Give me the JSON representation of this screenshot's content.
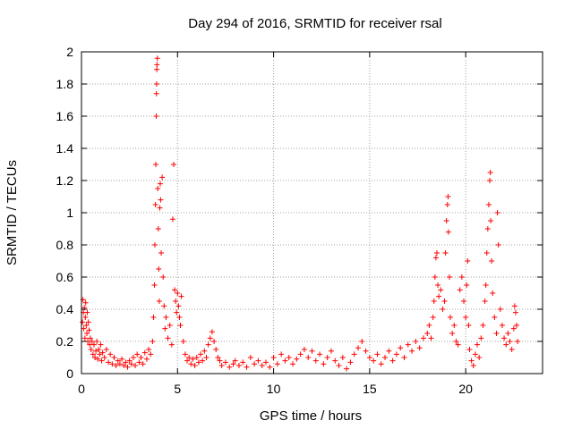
{
  "chart_data": {
    "type": "scatter",
    "title": "Day 294 of 2016, SRMTID for receiver rsal",
    "xlabel": "GPS time / hours",
    "ylabel": "SRMTID / TECUs",
    "xlim": [
      0,
      24
    ],
    "ylim": [
      0,
      2
    ],
    "xticks": [
      0,
      5,
      10,
      15,
      20
    ],
    "yticks": [
      0,
      0.2,
      0.4,
      0.6,
      0.8,
      1,
      1.2,
      1.4,
      1.6,
      1.8,
      2
    ],
    "grid": true,
    "marker": "+",
    "color": "#ff0000",
    "series": [
      {
        "points": [
          [
            0.05,
            0.32
          ],
          [
            0.08,
            0.46
          ],
          [
            0.1,
            0.38
          ],
          [
            0.12,
            0.28
          ],
          [
            0.15,
            0.41
          ],
          [
            0.18,
            0.22
          ],
          [
            0.2,
            0.35
          ],
          [
            0.22,
            0.44
          ],
          [
            0.25,
            0.3
          ],
          [
            0.28,
            0.25
          ],
          [
            0.3,
            0.38
          ],
          [
            0.33,
            0.2
          ],
          [
            0.36,
            0.32
          ],
          [
            0.4,
            0.27
          ],
          [
            0.43,
            0.18
          ],
          [
            0.46,
            0.22
          ],
          [
            0.5,
            0.15
          ],
          [
            0.55,
            0.2
          ],
          [
            0.6,
            0.12
          ],
          [
            0.65,
            0.18
          ],
          [
            0.7,
            0.1
          ],
          [
            0.75,
            0.14
          ],
          [
            0.8,
            0.2
          ],
          [
            0.85,
            0.09
          ],
          [
            0.9,
            0.15
          ],
          [
            0.95,
            0.12
          ],
          [
            1.0,
            0.18
          ],
          [
            1.05,
            0.08
          ],
          [
            1.1,
            0.13
          ],
          [
            1.2,
            0.1
          ],
          [
            1.3,
            0.15
          ],
          [
            1.4,
            0.07
          ],
          [
            1.5,
            0.12
          ],
          [
            1.6,
            0.06
          ],
          [
            1.7,
            0.1
          ],
          [
            1.8,
            0.05
          ],
          [
            1.9,
            0.08
          ],
          [
            2.0,
            0.06
          ],
          [
            2.1,
            0.09
          ],
          [
            2.2,
            0.05
          ],
          [
            2.3,
            0.07
          ],
          [
            2.4,
            0.04
          ],
          [
            2.5,
            0.08
          ],
          [
            2.6,
            0.06
          ],
          [
            2.7,
            0.1
          ],
          [
            2.8,
            0.05
          ],
          [
            2.9,
            0.12
          ],
          [
            3.0,
            0.07
          ],
          [
            3.1,
            0.1
          ],
          [
            3.2,
            0.06
          ],
          [
            3.3,
            0.13
          ],
          [
            3.4,
            0.09
          ],
          [
            3.5,
            0.15
          ],
          [
            3.6,
            0.12
          ],
          [
            3.7,
            0.2
          ],
          [
            3.75,
            0.35
          ],
          [
            3.8,
            0.55
          ],
          [
            3.82,
            0.8
          ],
          [
            3.85,
            1.05
          ],
          [
            3.87,
            1.3
          ],
          [
            3.89,
            1.6
          ],
          [
            3.9,
            1.74
          ],
          [
            3.91,
            1.8
          ],
          [
            3.92,
            1.89
          ],
          [
            3.93,
            1.92
          ],
          [
            3.95,
            1.96
          ],
          [
            3.97,
            1.15
          ],
          [
            4.0,
            0.9
          ],
          [
            4.02,
            0.65
          ],
          [
            4.05,
            0.45
          ],
          [
            4.08,
            1.03
          ],
          [
            4.1,
            1.18
          ],
          [
            4.12,
            1.08
          ],
          [
            4.15,
            0.75
          ],
          [
            4.2,
            1.22
          ],
          [
            4.25,
            0.6
          ],
          [
            4.3,
            0.42
          ],
          [
            4.35,
            0.28
          ],
          [
            4.4,
            0.35
          ],
          [
            4.5,
            0.22
          ],
          [
            4.6,
            0.3
          ],
          [
            4.7,
            0.18
          ],
          [
            4.75,
            0.96
          ],
          [
            4.8,
            1.3
          ],
          [
            4.85,
            0.52
          ],
          [
            4.9,
            0.45
          ],
          [
            4.95,
            0.38
          ],
          [
            5.0,
            0.5
          ],
          [
            5.05,
            0.42
          ],
          [
            5.1,
            0.35
          ],
          [
            5.15,
            0.3
          ],
          [
            5.2,
            0.48
          ],
          [
            5.3,
            0.2
          ],
          [
            5.4,
            0.12
          ],
          [
            5.5,
            0.08
          ],
          [
            5.6,
            0.1
          ],
          [
            5.7,
            0.06
          ],
          [
            5.8,
            0.09
          ],
          [
            5.9,
            0.05
          ],
          [
            6.0,
            0.1
          ],
          [
            6.1,
            0.07
          ],
          [
            6.2,
            0.12
          ],
          [
            6.3,
            0.08
          ],
          [
            6.4,
            0.14
          ],
          [
            6.5,
            0.1
          ],
          [
            6.6,
            0.18
          ],
          [
            6.7,
            0.22
          ],
          [
            6.8,
            0.26
          ],
          [
            6.9,
            0.2
          ],
          [
            7.0,
            0.15
          ],
          [
            7.1,
            0.1
          ],
          [
            7.2,
            0.08
          ],
          [
            7.3,
            0.05
          ],
          [
            7.5,
            0.07
          ],
          [
            7.7,
            0.04
          ],
          [
            7.9,
            0.06
          ],
          [
            8.0,
            0.08
          ],
          [
            8.2,
            0.05
          ],
          [
            8.4,
            0.07
          ],
          [
            8.6,
            0.04
          ],
          [
            8.8,
            0.1
          ],
          [
            9.0,
            0.06
          ],
          [
            9.2,
            0.08
          ],
          [
            9.4,
            0.05
          ],
          [
            9.6,
            0.07
          ],
          [
            9.8,
            0.04
          ],
          [
            10.0,
            0.1
          ],
          [
            10.2,
            0.06
          ],
          [
            10.4,
            0.12
          ],
          [
            10.6,
            0.08
          ],
          [
            10.8,
            0.1
          ],
          [
            11.0,
            0.06
          ],
          [
            11.2,
            0.09
          ],
          [
            11.4,
            0.12
          ],
          [
            11.6,
            0.15
          ],
          [
            11.8,
            0.1
          ],
          [
            12.0,
            0.14
          ],
          [
            12.2,
            0.08
          ],
          [
            12.4,
            0.12
          ],
          [
            12.6,
            0.06
          ],
          [
            12.8,
            0.1
          ],
          [
            13.0,
            0.14
          ],
          [
            13.2,
            0.08
          ],
          [
            13.4,
            0.05
          ],
          [
            13.6,
            0.1
          ],
          [
            13.8,
            0.03
          ],
          [
            14.0,
            0.07
          ],
          [
            14.2,
            0.12
          ],
          [
            14.4,
            0.16
          ],
          [
            14.6,
            0.2
          ],
          [
            14.8,
            0.14
          ],
          [
            15.0,
            0.1
          ],
          [
            15.2,
            0.08
          ],
          [
            15.4,
            0.12
          ],
          [
            15.6,
            0.06
          ],
          [
            15.8,
            0.1
          ],
          [
            16.0,
            0.14
          ],
          [
            16.2,
            0.08
          ],
          [
            16.4,
            0.12
          ],
          [
            16.6,
            0.16
          ],
          [
            16.8,
            0.1
          ],
          [
            17.0,
            0.18
          ],
          [
            17.2,
            0.14
          ],
          [
            17.4,
            0.2
          ],
          [
            17.6,
            0.16
          ],
          [
            17.8,
            0.22
          ],
          [
            18.0,
            0.25
          ],
          [
            18.1,
            0.3
          ],
          [
            18.2,
            0.22
          ],
          [
            18.3,
            0.35
          ],
          [
            18.35,
            0.45
          ],
          [
            18.4,
            0.6
          ],
          [
            18.45,
            0.72
          ],
          [
            18.5,
            0.75
          ],
          [
            18.55,
            0.55
          ],
          [
            18.6,
            0.48
          ],
          [
            18.7,
            0.52
          ],
          [
            18.8,
            0.4
          ],
          [
            18.9,
            0.45
          ],
          [
            18.95,
            0.75
          ],
          [
            19.0,
            0.95
          ],
          [
            19.05,
            1.05
          ],
          [
            19.08,
            1.1
          ],
          [
            19.1,
            0.88
          ],
          [
            19.15,
            0.6
          ],
          [
            19.2,
            0.35
          ],
          [
            19.3,
            0.25
          ],
          [
            19.4,
            0.3
          ],
          [
            19.5,
            0.2
          ],
          [
            19.6,
            0.18
          ],
          [
            19.7,
            0.52
          ],
          [
            19.8,
            0.6
          ],
          [
            19.9,
            0.45
          ],
          [
            20.0,
            0.35
          ],
          [
            20.05,
            0.55
          ],
          [
            20.1,
            0.7
          ],
          [
            20.15,
            0.3
          ],
          [
            20.2,
            0.15
          ],
          [
            20.3,
            0.08
          ],
          [
            20.4,
            0.05
          ],
          [
            20.5,
            0.12
          ],
          [
            20.6,
            0.18
          ],
          [
            20.7,
            0.1
          ],
          [
            20.8,
            0.22
          ],
          [
            20.9,
            0.3
          ],
          [
            21.0,
            0.45
          ],
          [
            21.05,
            0.55
          ],
          [
            21.1,
            0.75
          ],
          [
            21.15,
            0.9
          ],
          [
            21.2,
            1.05
          ],
          [
            21.25,
            1.2
          ],
          [
            21.28,
            1.25
          ],
          [
            21.3,
            0.95
          ],
          [
            21.35,
            0.7
          ],
          [
            21.4,
            0.5
          ],
          [
            21.5,
            0.35
          ],
          [
            21.6,
            0.25
          ],
          [
            21.65,
            1.0
          ],
          [
            21.7,
            0.8
          ],
          [
            21.8,
            0.4
          ],
          [
            21.9,
            0.3
          ],
          [
            22.0,
            0.22
          ],
          [
            22.1,
            0.18
          ],
          [
            22.2,
            0.25
          ],
          [
            22.3,
            0.2
          ],
          [
            22.4,
            0.15
          ],
          [
            22.5,
            0.28
          ],
          [
            22.55,
            0.42
          ],
          [
            22.6,
            0.38
          ],
          [
            22.65,
            0.3
          ],
          [
            22.7,
            0.2
          ]
        ]
      }
    ]
  }
}
